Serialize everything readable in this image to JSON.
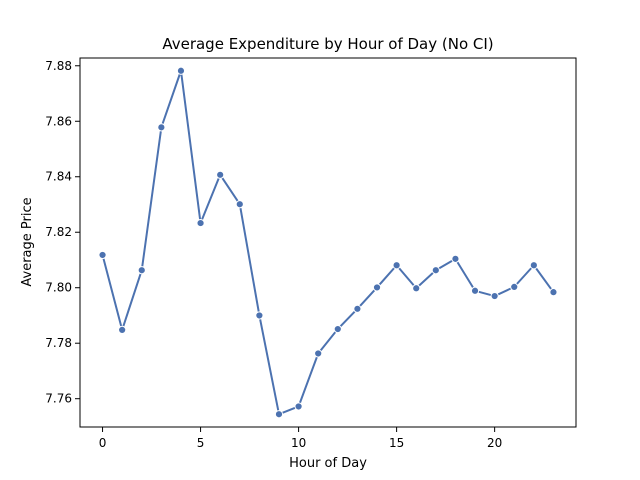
{
  "chart_data": {
    "type": "line",
    "title": "Average Expenditure by Hour of Day (No CI)",
    "xlabel": "Hour of Day",
    "ylabel": "Average Price",
    "xlim": [
      -1.15,
      24.15
    ],
    "ylim": [
      7.7498,
      7.8828
    ],
    "xticks": [
      0,
      5,
      10,
      15,
      20
    ],
    "xtick_labels": [
      "0",
      "5",
      "10",
      "15",
      "20"
    ],
    "yticks": [
      7.76,
      7.78,
      7.8,
      7.82,
      7.84,
      7.86,
      7.88
    ],
    "ytick_labels": [
      "7.76",
      "7.78",
      "7.80",
      "7.82",
      "7.84",
      "7.86",
      "7.88"
    ],
    "grid": false,
    "color": "#4c72b0",
    "x": [
      0,
      1,
      2,
      3,
      4,
      5,
      6,
      7,
      8,
      9,
      10,
      11,
      12,
      13,
      14,
      15,
      16,
      17,
      18,
      19,
      20,
      21,
      22,
      23
    ],
    "series": [
      {
        "values": [
          7.8118,
          7.7848,
          7.8063,
          7.8578,
          7.8782,
          7.8233,
          7.8407,
          7.8301,
          7.79,
          7.7544,
          7.7572,
          7.7763,
          7.7851,
          7.7924,
          7.8001,
          7.8081,
          7.7998,
          7.8063,
          7.8104,
          7.7989,
          7.797,
          7.8003,
          7.8081,
          7.7984
        ]
      }
    ]
  }
}
